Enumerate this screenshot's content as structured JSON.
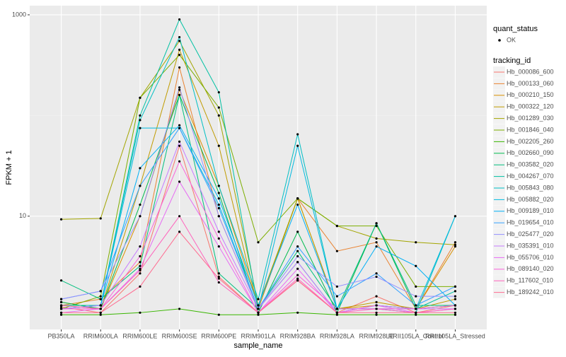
{
  "chart_data": {
    "type": "line",
    "log_y": true,
    "grid": true,
    "x_label": "sample_name",
    "y_label": "FPKM + 1",
    "shape_legend": {
      "title": "quant_status",
      "labels": [
        "OK"
      ]
    },
    "legend_title": "tracking_id",
    "categories": [
      "PB350LA",
      "RRIM600LA",
      "RRIM600LE",
      "RRIM600SE",
      "RRIM600PE",
      "RRIM901LA",
      "RRIM928BA",
      "RRIM928LA",
      "RRIM928LE",
      "RRII105LA_Control",
      "RRII105LA_Stressed"
    ],
    "ylim": [
      0.75,
      1233
    ],
    "yticks": [
      10,
      1000
    ],
    "series": [
      {
        "name": "Hb_000086_600",
        "color": "#F8766D",
        "values": [
          1.25,
          1.1,
          2.7,
          50,
          2.5,
          1.1,
          2.3,
          1.1,
          1.6,
          1.1,
          1.3
        ]
      },
      {
        "name": "Hb_000133_060",
        "color": "#EA8331",
        "values": [
          1.3,
          1.5,
          3.5,
          300,
          10,
          1.2,
          15,
          4.5,
          5.5,
          1.2,
          5.5
        ]
      },
      {
        "name": "Hb_000210_150",
        "color": "#D89000",
        "values": [
          1.4,
          1.2,
          10,
          180,
          20,
          1.3,
          15,
          1.2,
          1.3,
          1.2,
          5
        ]
      },
      {
        "name": "Hb_000322_120",
        "color": "#C09B00",
        "values": [
          1.3,
          1.2,
          20,
          450,
          50,
          1.2,
          15,
          1.2,
          1.4,
          1.2,
          1.5
        ]
      },
      {
        "name": "Hb_001289_030",
        "color": "#A3A500",
        "values": [
          9.3,
          9.5,
          150,
          550,
          100,
          1.3,
          15,
          8,
          6,
          5.5,
          5.2
        ]
      },
      {
        "name": "Hb_001846_040",
        "color": "#7CAE00",
        "values": [
          1.2,
          1.6,
          150,
          400,
          120,
          5.5,
          15,
          8,
          8,
          2,
          2
        ]
      },
      {
        "name": "Hb_002205_260",
        "color": "#39B600",
        "values": [
          1.05,
          1.05,
          1.1,
          1.2,
          1.05,
          1.05,
          1.1,
          1.05,
          1.05,
          1.05,
          1.05
        ]
      },
      {
        "name": "Hb_002660_090",
        "color": "#00BB4E",
        "values": [
          1.4,
          1.2,
          13,
          160,
          17,
          1.1,
          7,
          1.1,
          8.5,
          1.2,
          1.3
        ]
      },
      {
        "name": "Hb_003582_020",
        "color": "#00BF7D",
        "values": [
          2.3,
          1.5,
          3.2,
          160,
          2.7,
          1.2,
          4.5,
          1.2,
          8.5,
          1.3,
          1.3
        ]
      },
      {
        "name": "Hb_004267_070",
        "color": "#00C1A3",
        "values": [
          1.3,
          1.3,
          100,
          900,
          170,
          1.2,
          3.5,
          1.1,
          1.3,
          1.2,
          1.8
        ]
      },
      {
        "name": "Hb_005843_080",
        "color": "#00BFC4",
        "values": [
          1.2,
          1.3,
          90,
          600,
          20,
          1.5,
          65,
          1.2,
          1.2,
          1.1,
          10
        ]
      },
      {
        "name": "Hb_005882_020",
        "color": "#00BAE0",
        "values": [
          1.2,
          1.3,
          75,
          75,
          13,
          1.2,
          50,
          1.2,
          1.2,
          1.2,
          10
        ]
      },
      {
        "name": "Hb_009189_010",
        "color": "#00B0F6",
        "values": [
          1.2,
          1.3,
          30,
          80,
          15,
          1.3,
          13,
          1.2,
          5,
          3.2,
          1.3
        ]
      },
      {
        "name": "Hb_019654_010",
        "color": "#35A2FF",
        "values": [
          1.5,
          1.8,
          20,
          75,
          12,
          1.2,
          5,
          1.6,
          2.7,
          1.3,
          2
        ]
      },
      {
        "name": "Hb_025477_020",
        "color": "#9590FF",
        "values": [
          1.5,
          1.8,
          10,
          190,
          10,
          1.2,
          4,
          2,
          2.5,
          1.6,
          1.6
        ]
      },
      {
        "name": "Hb_035391_010",
        "color": "#C77CFF",
        "values": [
          1.2,
          1.3,
          5,
          55,
          7,
          1.2,
          3.5,
          1.1,
          1.3,
          1.2,
          1.2
        ]
      },
      {
        "name": "Hb_055706_010",
        "color": "#E76BF3",
        "values": [
          1.1,
          1.2,
          3,
          22,
          5,
          1.1,
          3,
          1.1,
          1.3,
          1.1,
          1.2
        ]
      },
      {
        "name": "Hb_089140_020",
        "color": "#FA62DB",
        "values": [
          1.2,
          1.2,
          4,
          35,
          6,
          1.1,
          2.6,
          1.2,
          1.2,
          1.2,
          1.3
        ]
      },
      {
        "name": "Hb_117602_010",
        "color": "#FF62BC",
        "values": [
          1.3,
          1.2,
          2.9,
          10,
          2.2,
          1.1,
          2.4,
          1.1,
          1.2,
          1.1,
          1.2
        ]
      },
      {
        "name": "Hb_189242_010",
        "color": "#FF6C91",
        "values": [
          1.1,
          1.1,
          2,
          7,
          2.4,
          1.1,
          2.3,
          1.1,
          1.1,
          1.1,
          1.1
        ]
      }
    ]
  }
}
